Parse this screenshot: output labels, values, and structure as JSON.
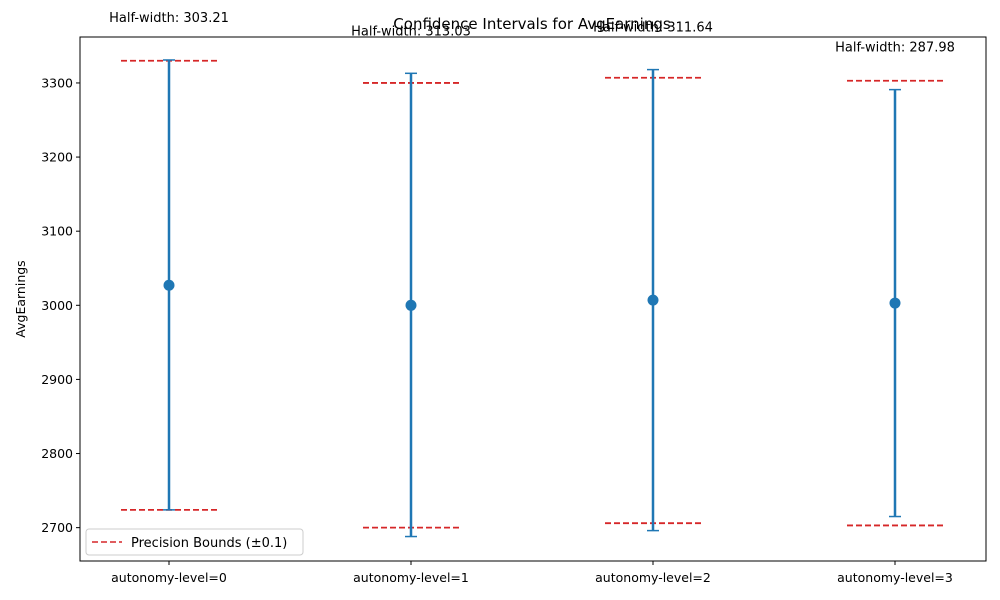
{
  "chart_data": {
    "type": "errorbar",
    "title": "Confidence Intervals for AvgEarnings",
    "xlabel": "",
    "ylabel": "AvgEarnings",
    "categories": [
      "autonomy-level=0",
      "autonomy-level=1",
      "autonomy-level=2",
      "autonomy-level=3"
    ],
    "means": [
      3027,
      3000,
      3007,
      3003
    ],
    "ci_lower": [
      2724,
      2688,
      2696,
      2715
    ],
    "ci_upper": [
      3331,
      3313,
      3318,
      3291
    ],
    "precision_bounds": [
      {
        "lower": 2724,
        "upper": 3330
      },
      {
        "lower": 2700,
        "upper": 3300
      },
      {
        "lower": 2706,
        "upper": 3307
      },
      {
        "lower": 2703,
        "upper": 3303
      }
    ],
    "annotations": [
      "Half-width: 303.21",
      "Half-width: 313.03",
      "Half-width: 311.64",
      "Half-width: 287.98"
    ],
    "yticks": [
      2700,
      2800,
      2900,
      3000,
      3100,
      3200,
      3300
    ],
    "ylim": [
      2655,
      3362
    ],
    "legend": {
      "label": "Precision Bounds (±0.1)",
      "position": "lower-left"
    },
    "grid": false,
    "colors": {
      "series": "#1f77b4",
      "bounds": "#d62728"
    }
  }
}
